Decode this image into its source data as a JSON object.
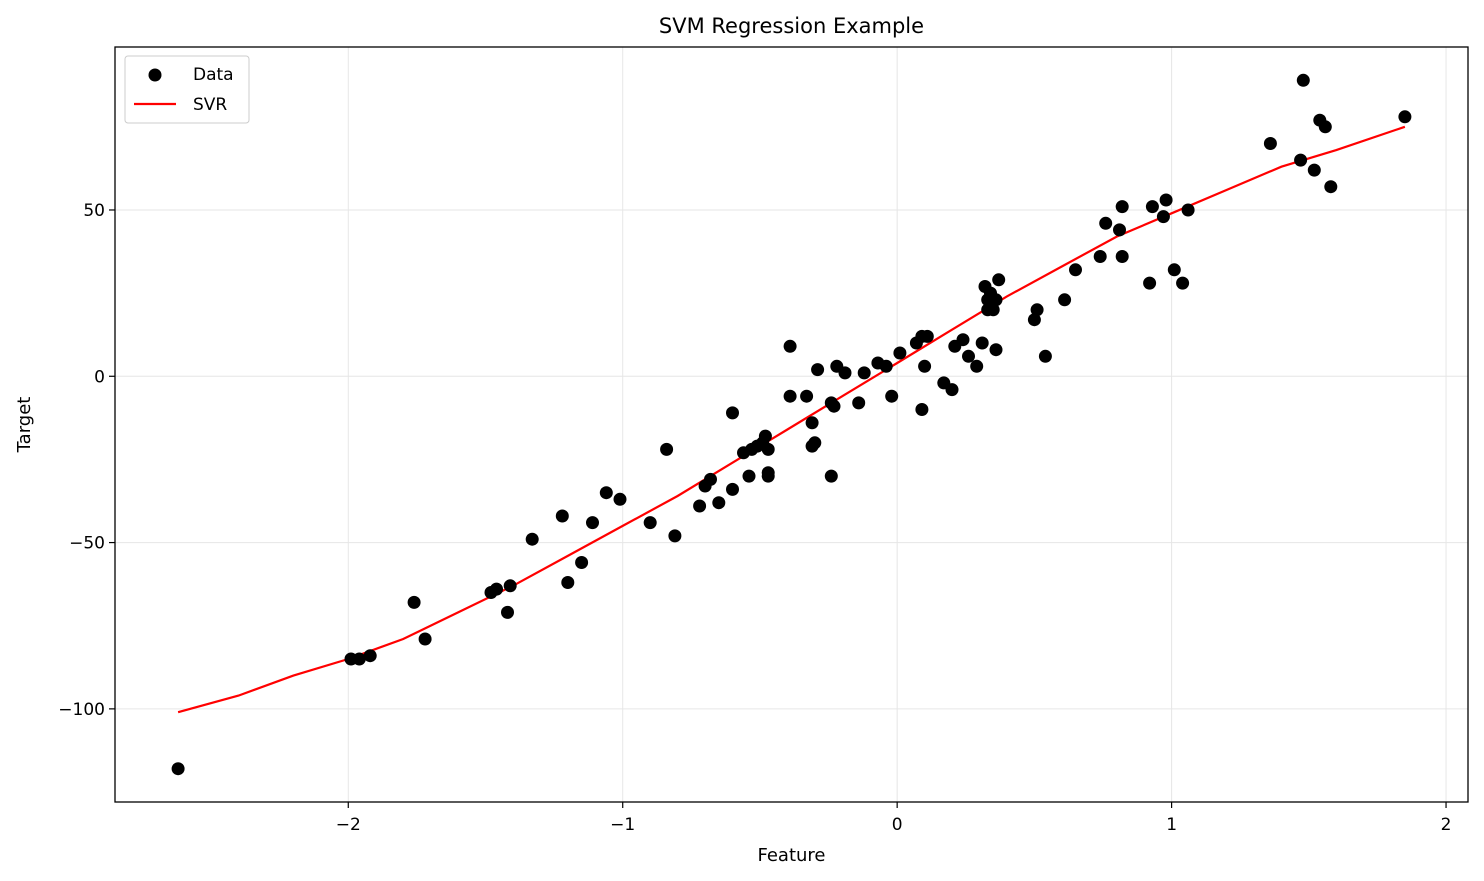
{
  "chart_data": {
    "type": "scatter",
    "title": "SVM Regression Example",
    "xlabel": "Feature",
    "ylabel": "Target",
    "xlim": [
      -2.85,
      2.08
    ],
    "ylim": [
      -128,
      99
    ],
    "xticks": [
      -2,
      -1,
      0,
      1,
      2
    ],
    "yticks": [
      -100,
      -50,
      0,
      50
    ],
    "grid": true,
    "legend": {
      "placement": "top-left",
      "entries": [
        "Data",
        "SVR"
      ]
    },
    "colors": {
      "data": "#000000",
      "svr": "#ff0000",
      "grid": "#e6e6e6"
    },
    "series": [
      {
        "name": "Data",
        "kind": "scatter",
        "points": [
          [
            -2.62,
            -118
          ],
          [
            -1.99,
            -85
          ],
          [
            -1.96,
            -85
          ],
          [
            -1.92,
            -84
          ],
          [
            -1.76,
            -68
          ],
          [
            -1.72,
            -79
          ],
          [
            -1.48,
            -65
          ],
          [
            -1.46,
            -64
          ],
          [
            -1.42,
            -71
          ],
          [
            -1.41,
            -63
          ],
          [
            -1.33,
            -49
          ],
          [
            -1.22,
            -42
          ],
          [
            -1.2,
            -62
          ],
          [
            -1.15,
            -56
          ],
          [
            -1.11,
            -44
          ],
          [
            -1.06,
            -35
          ],
          [
            -1.01,
            -37
          ],
          [
            -0.9,
            -44
          ],
          [
            -0.84,
            -22
          ],
          [
            -0.81,
            -48
          ],
          [
            -0.72,
            -39
          ],
          [
            -0.7,
            -33
          ],
          [
            -0.68,
            -31
          ],
          [
            -0.65,
            -38
          ],
          [
            -0.6,
            -34
          ],
          [
            -0.6,
            -11
          ],
          [
            -0.56,
            -23
          ],
          [
            -0.54,
            -30
          ],
          [
            -0.53,
            -22
          ],
          [
            -0.51,
            -21
          ],
          [
            -0.49,
            -20
          ],
          [
            -0.48,
            -18
          ],
          [
            -0.47,
            -22
          ],
          [
            -0.47,
            -29
          ],
          [
            -0.47,
            -30
          ],
          [
            -0.39,
            9
          ],
          [
            -0.39,
            -6
          ],
          [
            -0.33,
            -6
          ],
          [
            -0.31,
            -14
          ],
          [
            -0.31,
            -21
          ],
          [
            -0.3,
            -20
          ],
          [
            -0.29,
            2
          ],
          [
            -0.24,
            -8
          ],
          [
            -0.24,
            -30
          ],
          [
            -0.23,
            -9
          ],
          [
            -0.22,
            3
          ],
          [
            -0.19,
            1
          ],
          [
            -0.14,
            -8
          ],
          [
            -0.12,
            1
          ],
          [
            -0.07,
            4
          ],
          [
            -0.04,
            3
          ],
          [
            -0.02,
            -6
          ],
          [
            0.01,
            7
          ],
          [
            0.07,
            10
          ],
          [
            0.09,
            -10
          ],
          [
            0.09,
            12
          ],
          [
            0.1,
            3
          ],
          [
            0.11,
            12
          ],
          [
            0.17,
            -2
          ],
          [
            0.2,
            -4
          ],
          [
            0.21,
            9
          ],
          [
            0.24,
            11
          ],
          [
            0.26,
            6
          ],
          [
            0.29,
            3
          ],
          [
            0.31,
            10
          ],
          [
            0.32,
            27
          ],
          [
            0.33,
            23
          ],
          [
            0.33,
            20
          ],
          [
            0.34,
            25
          ],
          [
            0.35,
            20
          ],
          [
            0.36,
            23
          ],
          [
            0.36,
            8
          ],
          [
            0.37,
            29
          ],
          [
            0.5,
            17
          ],
          [
            0.51,
            20
          ],
          [
            0.54,
            6
          ],
          [
            0.61,
            23
          ],
          [
            0.65,
            32
          ],
          [
            0.74,
            36
          ],
          [
            0.76,
            46
          ],
          [
            0.81,
            44
          ],
          [
            0.82,
            36
          ],
          [
            0.82,
            51
          ],
          [
            0.92,
            28
          ],
          [
            0.93,
            51
          ],
          [
            0.97,
            48
          ],
          [
            0.98,
            53
          ],
          [
            1.01,
            32
          ],
          [
            1.04,
            28
          ],
          [
            1.06,
            50
          ],
          [
            1.36,
            70
          ],
          [
            1.47,
            65
          ],
          [
            1.48,
            89
          ],
          [
            1.52,
            62
          ],
          [
            1.54,
            77
          ],
          [
            1.56,
            75
          ],
          [
            1.58,
            57
          ],
          [
            1.85,
            78
          ]
        ]
      },
      {
        "name": "SVR",
        "kind": "line",
        "points": [
          [
            -2.62,
            -101
          ],
          [
            -2.4,
            -96
          ],
          [
            -2.2,
            -90
          ],
          [
            -2.0,
            -85
          ],
          [
            -1.8,
            -79
          ],
          [
            -1.6,
            -71
          ],
          [
            -1.4,
            -63
          ],
          [
            -1.2,
            -54
          ],
          [
            -1.0,
            -45
          ],
          [
            -0.8,
            -36
          ],
          [
            -0.6,
            -26
          ],
          [
            -0.4,
            -16
          ],
          [
            -0.2,
            -6
          ],
          [
            0.0,
            4
          ],
          [
            0.2,
            14
          ],
          [
            0.4,
            24
          ],
          [
            0.6,
            33
          ],
          [
            0.8,
            42
          ],
          [
            1.0,
            49
          ],
          [
            1.2,
            56
          ],
          [
            1.4,
            63
          ],
          [
            1.6,
            68
          ],
          [
            1.85,
            75
          ]
        ]
      }
    ]
  }
}
